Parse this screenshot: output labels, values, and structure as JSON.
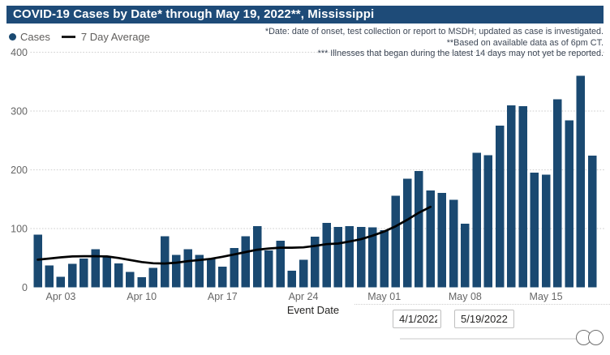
{
  "title": "COVID-19 Cases by Date* through May 19, 2022**, Mississippi",
  "legend": {
    "cases_label": "Cases",
    "average_label": "7 Day Average"
  },
  "footnotes": [
    "*Date: date of onset, test collection or report to MSDH; updated as case is investigated.",
    "**Based on available data as of 6pm CT.",
    "*** Illnesses that began during the latest 14 days may not yet be reported."
  ],
  "colors": {
    "title_bar_bg": "#1E4B78",
    "bar": "#1A4971",
    "average_line": "#000000",
    "gridline": "#D6D6D6",
    "axis_label": "#666666",
    "footnote": "#3D4756"
  },
  "chart_data": {
    "type": "bar",
    "title": "COVID-19 Cases by Date* through May 19, 2022**, Mississippi",
    "xlabel": "Event Date",
    "ylabel": "",
    "ylim": [
      0,
      400
    ],
    "grid": "horizontal-dotted",
    "legend_position": "top-left",
    "categories": [
      "Apr 1",
      "Apr 2",
      "Apr 3",
      "Apr 4",
      "Apr 5",
      "Apr 6",
      "Apr 7",
      "Apr 8",
      "Apr 9",
      "Apr 10",
      "Apr 11",
      "Apr 12",
      "Apr 13",
      "Apr 14",
      "Apr 15",
      "Apr 16",
      "Apr 17",
      "Apr 18",
      "Apr 19",
      "Apr 20",
      "Apr 21",
      "Apr 22",
      "Apr 23",
      "Apr 24",
      "Apr 25",
      "Apr 26",
      "Apr 27",
      "Apr 28",
      "Apr 29",
      "Apr 30",
      "May 1",
      "May 2",
      "May 3",
      "May 4",
      "May 5",
      "May 6",
      "May 7",
      "May 8",
      "May 9",
      "May 10",
      "May 11",
      "May 12",
      "May 13",
      "May 14",
      "May 15",
      "May 16",
      "May 17",
      "May 18",
      "May 19"
    ],
    "series": [
      {
        "name": "Cases",
        "type": "bar",
        "values": [
          90,
          37,
          18,
          40,
          49,
          65,
          52,
          41,
          26,
          17,
          33,
          87,
          55,
          65,
          55,
          49,
          35,
          67,
          87,
          104,
          63,
          79,
          28,
          47,
          86,
          110,
          103,
          104,
          103,
          102,
          97,
          156,
          185,
          198,
          165,
          161,
          149,
          108,
          229,
          225,
          275,
          310,
          308,
          195,
          192,
          320,
          284,
          360,
          224
        ]
      },
      {
        "name": "7 Day Average",
        "type": "line",
        "start_index": 0,
        "values": [
          47,
          49,
          51,
          52.5,
          53,
          53,
          52.5,
          50,
          46.5,
          43,
          41,
          40.5,
          42,
          44.5,
          46.5,
          48.5,
          52,
          56,
          60,
          64,
          66,
          67.5,
          67.5,
          68,
          70.5,
          73.5,
          74.5,
          78,
          82,
          88,
          95,
          104,
          115,
          127,
          137
        ]
      }
    ],
    "x_ticks": [
      {
        "index": 2,
        "label": "Apr 03"
      },
      {
        "index": 9,
        "label": "Apr 10"
      },
      {
        "index": 16,
        "label": "Apr 17"
      },
      {
        "index": 23,
        "label": "Apr 24"
      },
      {
        "index": 30,
        "label": "May 01"
      },
      {
        "index": 37,
        "label": "May 08"
      },
      {
        "index": 44,
        "label": "May 15"
      }
    ],
    "y_ticks": [
      {
        "value": 0,
        "label": "0"
      },
      {
        "value": 100,
        "label": "100"
      },
      {
        "value": 200,
        "label": "200"
      },
      {
        "value": 300,
        "label": "300"
      },
      {
        "value": 400,
        "label": "400"
      }
    ]
  },
  "date_slicer": {
    "start_value": "4/1/2022",
    "end_value": "5/19/2022"
  }
}
